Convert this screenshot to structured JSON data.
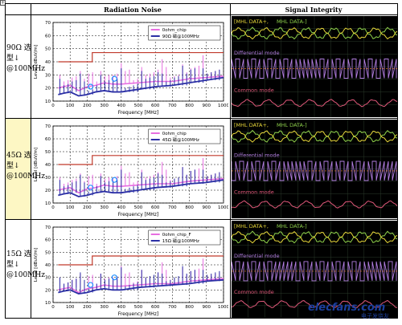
{
  "header": {
    "radiation": "Radiation Noise",
    "signal": "Signal Integrity"
  },
  "rows": [
    {
      "label": [
        "90Ω 选",
        "型↓",
        "@100MHz"
      ],
      "highlight": false
    },
    {
      "label": [
        "45Ω 选",
        "型↓",
        "@100MHz"
      ],
      "highlight": true
    },
    {
      "label": [
        "15Ω 选",
        "型↓",
        "@100MHz"
      ],
      "highlight": false
    }
  ],
  "chart_data": [
    {
      "type": "line",
      "xlabel": "Frequency [MHz]",
      "ylabel": "Level [dBuV/m]",
      "xlim": [
        0,
        1000
      ],
      "ylim": [
        10,
        70
      ],
      "xticks": [
        0,
        100,
        200,
        300,
        400,
        500,
        600,
        700,
        800,
        900,
        1000
      ],
      "yticks": [
        10,
        20,
        30,
        40,
        50,
        60,
        70
      ],
      "grid": true,
      "legend": "top-right",
      "series": [
        {
          "name": "0ohm_chip",
          "color": "#e76ee0",
          "x": [
            30,
            60,
            100,
            150,
            200,
            250,
            300,
            350,
            400,
            500,
            600,
            700,
            800,
            900,
            1000
          ],
          "y": [
            20,
            21,
            22,
            18,
            21,
            22,
            24,
            23,
            23,
            24,
            25,
            25,
            27,
            28,
            29
          ]
        },
        {
          "name": "90Ω 磁@100MHz",
          "color": "#2b2fa5",
          "x": [
            30,
            60,
            100,
            150,
            200,
            250,
            300,
            350,
            400,
            500,
            600,
            700,
            800,
            900,
            1000
          ],
          "y": [
            15,
            16,
            17,
            14,
            15,
            17,
            18,
            17,
            17,
            19,
            21,
            22,
            24,
            26,
            28
          ]
        }
      ],
      "limit_line": {
        "color": "#c0392b",
        "x": [
          30,
          230,
          230,
          1000
        ],
        "y": [
          40,
          40,
          47,
          47
        ]
      }
    },
    {
      "type": "line",
      "xlabel": "Frequency [MHz]",
      "ylabel": "Level [dBuV/m]",
      "xlim": [
        0,
        1000
      ],
      "ylim": [
        10,
        70
      ],
      "xticks": [
        0,
        100,
        200,
        300,
        400,
        500,
        600,
        700,
        800,
        900,
        1000
      ],
      "yticks": [
        10,
        20,
        30,
        40,
        50,
        60,
        70
      ],
      "grid": true,
      "legend": "top-right",
      "series": [
        {
          "name": "0ohm_chip",
          "color": "#e76ee0",
          "x": [
            30,
            60,
            100,
            150,
            200,
            250,
            300,
            350,
            400,
            500,
            600,
            700,
            800,
            900,
            1000
          ],
          "y": [
            20,
            21,
            22,
            18,
            21,
            22,
            24,
            23,
            23,
            24,
            25,
            25,
            27,
            28,
            29
          ]
        },
        {
          "name": "45Ω 磁@100MHz",
          "color": "#2b2fa5",
          "x": [
            30,
            60,
            100,
            150,
            200,
            250,
            300,
            350,
            400,
            500,
            600,
            700,
            800,
            900,
            1000
          ],
          "y": [
            16,
            17,
            18,
            15,
            16,
            18,
            19,
            18,
            18,
            20,
            22,
            23,
            25,
            26,
            28
          ]
        }
      ],
      "limit_line": {
        "color": "#c0392b",
        "x": [
          30,
          230,
          230,
          1000
        ],
        "y": [
          40,
          40,
          47,
          47
        ]
      }
    },
    {
      "type": "line",
      "xlabel": "Frequency [MHz]",
      "ylabel": "Level [dBuV/m]",
      "xlim": [
        0,
        1000
      ],
      "ylim": [
        10,
        70
      ],
      "xticks": [
        0,
        100,
        200,
        300,
        400,
        500,
        600,
        700,
        800,
        900,
        1000
      ],
      "yticks": [
        10,
        20,
        30,
        40,
        50,
        60,
        70
      ],
      "grid": true,
      "legend": "top-right",
      "series": [
        {
          "name": "0ohm_chip_F",
          "color": "#e76ee0",
          "x": [
            30,
            60,
            100,
            150,
            200,
            250,
            300,
            350,
            400,
            500,
            600,
            700,
            800,
            900,
            1000
          ],
          "y": [
            20,
            21,
            22,
            18,
            21,
            22,
            24,
            23,
            23,
            24,
            25,
            25,
            27,
            28,
            29
          ]
        },
        {
          "name": "15Ω 磁@100MHz",
          "color": "#2b2fa5",
          "x": [
            30,
            60,
            100,
            150,
            200,
            250,
            300,
            350,
            400,
            500,
            600,
            700,
            800,
            900,
            1000
          ],
          "y": [
            18,
            19,
            20,
            17,
            18,
            20,
            21,
            20,
            20,
            22,
            23,
            24,
            25,
            27,
            28
          ]
        }
      ],
      "limit_line": {
        "color": "#c0392b",
        "x": [
          30,
          230,
          230,
          1000
        ],
        "y": [
          40,
          40,
          47,
          47
        ]
      }
    }
  ],
  "scopes": [
    {
      "labels": {
        "data_pos": "MHL DATA+",
        "data_neg": "MHL DATA-",
        "differential": "Differential mode",
        "common": "Common mode"
      }
    },
    {
      "labels": {
        "data_pos": "MHL DATA+",
        "data_neg": "MHL DATA-",
        "differential": "Differential mode",
        "common": "Common mode"
      }
    },
    {
      "labels": {
        "data_pos": "MHL DATA+",
        "data_neg": "MHL DATA-",
        "differential": "Differential mode",
        "common": "Common mode"
      }
    }
  ],
  "colors": {
    "data_pos": "#e9d93a",
    "data_neg": "#8ed04a",
    "differential": "#b27ee0",
    "common": "#e0587a",
    "scope_bg": "#000000",
    "scope_grid": "#2a3a2a"
  },
  "watermark": {
    "brand": "elecfans.com",
    "cn": "电子发烧友"
  }
}
